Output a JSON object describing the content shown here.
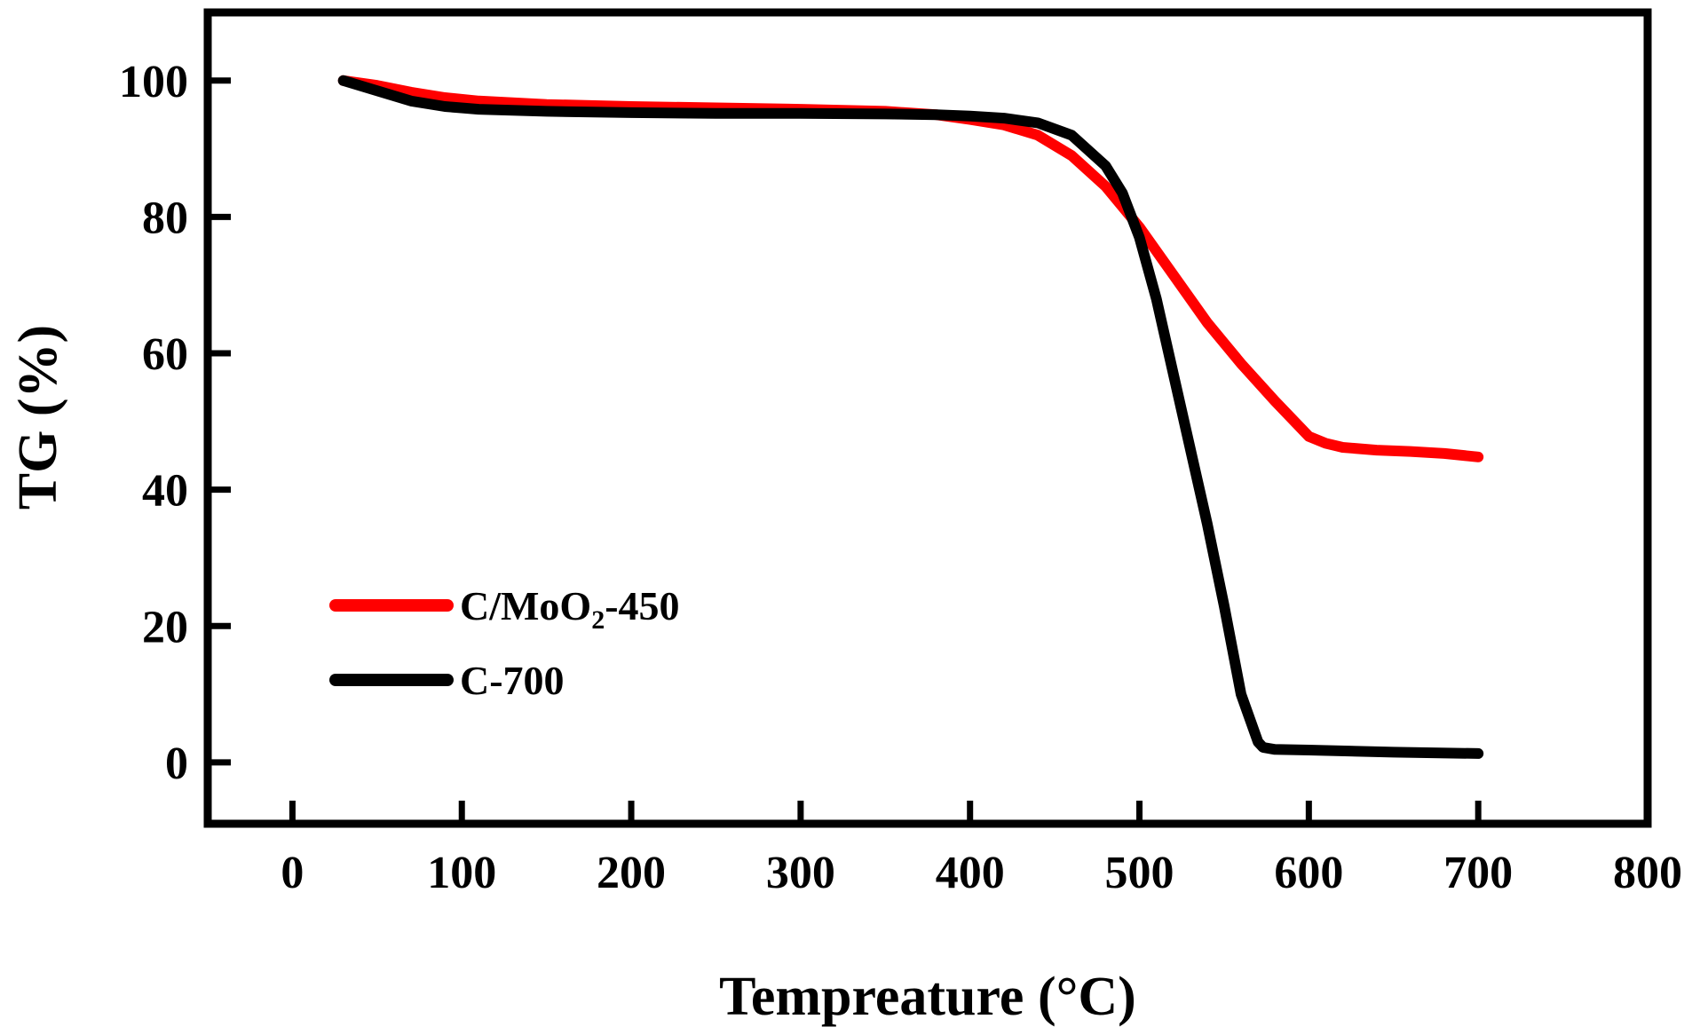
{
  "chart_data": {
    "type": "line",
    "title": "",
    "xlabel": "Tempreature (°C)",
    "ylabel": "TG (%)",
    "xlim": [
      -50,
      800
    ],
    "ylim": [
      -9,
      110
    ],
    "xticks": [
      0,
      100,
      200,
      300,
      400,
      500,
      600,
      700,
      800
    ],
    "yticks": [
      0,
      20,
      40,
      60,
      80,
      100
    ],
    "xtick_labels": [
      "0",
      "100",
      "200",
      "300",
      "400",
      "500",
      "600",
      "700",
      "800"
    ],
    "ytick_labels": [
      "0",
      "20",
      "40",
      "60",
      "80",
      "100"
    ],
    "grid": false,
    "legend_position": "bottom-left",
    "series": [
      {
        "name": "C/MoO2-450",
        "legend_main": "C/MoO",
        "legend_sub": "2",
        "legend_tail": "-450",
        "color": "#ff0000",
        "x": [
          30,
          50,
          70,
          90,
          110,
          150,
          200,
          250,
          300,
          350,
          380,
          400,
          420,
          440,
          460,
          480,
          500,
          520,
          540,
          560,
          580,
          600,
          610,
          620,
          640,
          660,
          680,
          700
        ],
        "y": [
          100,
          99.3,
          98.3,
          97.5,
          97.0,
          96.5,
          96.2,
          96.0,
          95.8,
          95.5,
          95.0,
          94.3,
          93.5,
          92.0,
          89.0,
          84.5,
          78.5,
          71.5,
          64.5,
          58.5,
          53.0,
          47.8,
          46.8,
          46.2,
          45.8,
          45.6,
          45.3,
          44.8
        ]
      },
      {
        "name": "C-700",
        "legend_main": "C-700",
        "legend_sub": "",
        "legend_tail": "",
        "color": "#000000",
        "x": [
          30,
          50,
          70,
          90,
          110,
          150,
          200,
          250,
          300,
          350,
          380,
          400,
          420,
          440,
          460,
          480,
          490,
          500,
          510,
          520,
          530,
          540,
          550,
          560,
          570,
          573,
          580,
          600,
          650,
          700
        ],
        "y": [
          100,
          98.5,
          97.0,
          96.2,
          95.8,
          95.5,
          95.3,
          95.2,
          95.2,
          95.1,
          95.0,
          94.8,
          94.5,
          93.8,
          92.0,
          87.5,
          83.5,
          77.0,
          68.0,
          57.0,
          46.0,
          35.0,
          23.0,
          10.0,
          3.0,
          2.2,
          1.9,
          1.8,
          1.5,
          1.3
        ]
      }
    ]
  }
}
